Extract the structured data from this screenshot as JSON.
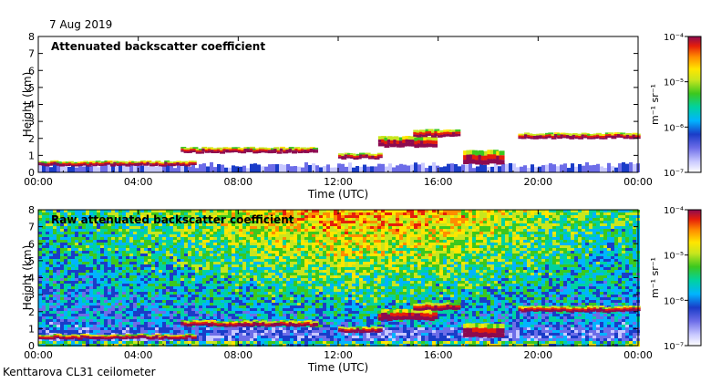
{
  "header": {
    "date": "7 Aug 2019"
  },
  "footer": {
    "site": "Kenttarova CL31 ceilometer"
  },
  "colorbar": {
    "unit_label": "m⁻¹ sr⁻¹",
    "tick_labels": [
      "10⁻⁴",
      "10⁻⁵",
      "10⁻⁶",
      "10⁻⁷"
    ],
    "scale": "log",
    "range": [
      1e-07,
      0.0001
    ],
    "colors": [
      "#ffffff",
      "#c9c9ff",
      "#6d6de8",
      "#1a3cc8",
      "#00b4ff",
      "#00d2a0",
      "#3cc81e",
      "#c8e61e",
      "#ffe600",
      "#ff8c00",
      "#e61e0a",
      "#8c0a50"
    ]
  },
  "chart_data": [
    {
      "type": "heatmap",
      "title": "Attenuated backscatter coefficient",
      "xlabel": "Time (UTC)",
      "ylabel": "Height (km)",
      "x_ticks": [
        "00:00",
        "04:00",
        "08:00",
        "12:00",
        "16:00",
        "20:00",
        "00:00"
      ],
      "y_ticks": [
        "0",
        "1",
        "2",
        "3",
        "4",
        "5",
        "6",
        "7",
        "8"
      ],
      "xlim_hours": [
        0,
        24
      ],
      "ylim_km": [
        0,
        8
      ],
      "cloud_layers": [
        {
          "start_h": 0.0,
          "end_h": 6.2,
          "base_km": 0.4,
          "top_km": 0.65
        },
        {
          "start_h": 5.7,
          "end_h": 11.0,
          "base_km": 1.15,
          "top_km": 1.45
        },
        {
          "start_h": 12.0,
          "end_h": 13.6,
          "base_km": 0.8,
          "top_km": 1.1
        },
        {
          "start_h": 13.6,
          "end_h": 15.8,
          "base_km": 1.5,
          "top_km": 2.1
        },
        {
          "start_h": 15.0,
          "end_h": 16.8,
          "base_km": 2.1,
          "top_km": 2.5
        },
        {
          "start_h": 17.0,
          "end_h": 18.5,
          "base_km": 0.5,
          "top_km": 1.3
        },
        {
          "start_h": 19.2,
          "end_h": 24.0,
          "base_km": 2.0,
          "top_km": 2.3
        }
      ]
    },
    {
      "type": "heatmap",
      "title": "Raw attenuated backscatter coefficient",
      "xlabel": "Time (UTC)",
      "ylabel": "Height (km)",
      "x_ticks": [
        "00:00",
        "04:00",
        "08:00",
        "12:00",
        "16:00",
        "20:00",
        "00:00"
      ],
      "y_ticks": [
        "0",
        "1",
        "2",
        "3",
        "4",
        "5",
        "6",
        "7",
        "8"
      ],
      "xlim_hours": [
        0,
        24
      ],
      "ylim_km": [
        0,
        8
      ],
      "noise_peak_hour": 13,
      "cloud_layers": [
        {
          "start_h": 0.0,
          "end_h": 6.2,
          "base_km": 0.4,
          "top_km": 0.65
        },
        {
          "start_h": 5.7,
          "end_h": 11.0,
          "base_km": 1.15,
          "top_km": 1.45
        },
        {
          "start_h": 12.0,
          "end_h": 13.6,
          "base_km": 0.8,
          "top_km": 1.1
        },
        {
          "start_h": 13.6,
          "end_h": 15.8,
          "base_km": 1.5,
          "top_km": 2.1
        },
        {
          "start_h": 15.0,
          "end_h": 16.8,
          "base_km": 2.1,
          "top_km": 2.5
        },
        {
          "start_h": 17.0,
          "end_h": 18.5,
          "base_km": 0.5,
          "top_km": 1.3
        },
        {
          "start_h": 19.2,
          "end_h": 24.0,
          "base_km": 2.0,
          "top_km": 2.3
        }
      ]
    }
  ]
}
